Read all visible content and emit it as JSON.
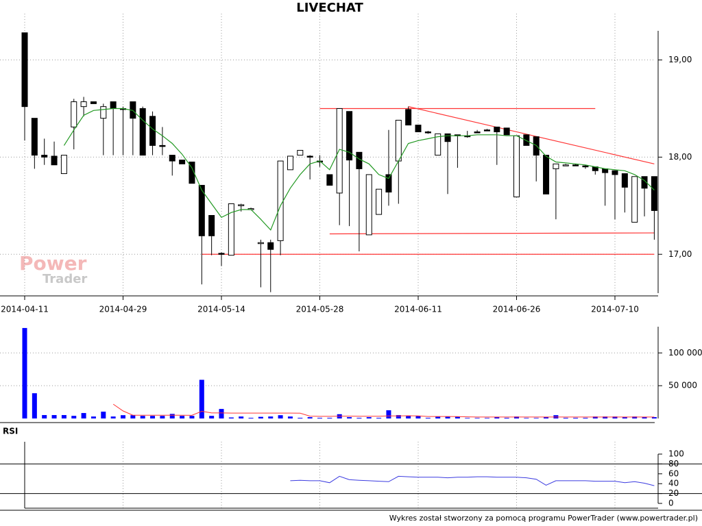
{
  "chart_data": [
    {
      "type": "candlestick",
      "title": "LIVECHAT",
      "x": [
        "2014-04-11",
        "2014-04-14",
        "2014-04-15",
        "2014-04-16",
        "2014-04-17",
        "2014-04-22",
        "2014-04-23",
        "2014-04-24",
        "2014-04-25",
        "2014-04-28",
        "2014-04-29",
        "2014-04-30",
        "2014-05-02",
        "2014-05-05",
        "2014-05-06",
        "2014-05-07",
        "2014-05-08",
        "2014-05-09",
        "2014-05-12",
        "2014-05-13",
        "2014-05-14",
        "2014-05-15",
        "2014-05-16",
        "2014-05-19",
        "2014-05-20",
        "2014-05-21",
        "2014-05-22",
        "2014-05-23",
        "2014-05-26",
        "2014-05-27",
        "2014-05-28",
        "2014-05-29",
        "2014-05-30",
        "2014-06-02",
        "2014-06-03",
        "2014-06-04",
        "2014-06-05",
        "2014-06-06",
        "2014-06-09",
        "2014-06-10",
        "2014-06-11",
        "2014-06-12",
        "2014-06-13",
        "2014-06-16",
        "2014-06-17",
        "2014-06-18",
        "2014-06-20",
        "2014-06-23",
        "2014-06-24",
        "2014-06-25",
        "2014-06-26",
        "2014-06-27",
        "2014-06-30",
        "2014-07-01",
        "2014-07-02",
        "2014-07-03",
        "2014-07-04",
        "2014-07-07",
        "2014-07-08",
        "2014-07-09",
        "2014-07-10",
        "2014-07-11",
        "2014-07-14",
        "2014-07-15",
        "2014-07-16"
      ],
      "open": [
        19.28,
        18.4,
        18.02,
        18.01,
        17.83,
        18.31,
        18.52,
        18.57,
        18.4,
        18.57,
        18.5,
        18.57,
        18.5,
        18.42,
        18.12,
        18.02,
        17.97,
        17.95,
        17.71,
        17.4,
        17.01,
        16.99,
        17.5,
        17.47,
        17.12,
        17.12,
        17.14,
        17.87,
        18.02,
        18.01,
        17.96,
        17.82,
        17.63,
        18.47,
        18.05,
        17.2,
        17.41,
        17.82,
        17.96,
        18.49,
        18.33,
        18.26,
        18.02,
        18.24,
        18.23,
        18.22,
        18.26,
        18.28,
        18.31,
        18.3,
        17.59,
        18.23,
        18.21,
        18.02,
        17.88,
        17.92,
        17.92,
        17.91,
        17.9,
        17.88,
        17.86,
        17.83,
        17.33,
        17.8,
        17.8
      ],
      "high": [
        19.28,
        18.4,
        18.19,
        18.16,
        18.02,
        18.6,
        18.62,
        18.57,
        18.55,
        18.57,
        18.52,
        18.57,
        18.52,
        18.47,
        18.31,
        18.02,
        17.97,
        17.95,
        17.71,
        17.4,
        17.02,
        17.52,
        17.52,
        17.48,
        17.15,
        17.15,
        17.96,
        18.01,
        18.07,
        18.02,
        18.02,
        17.82,
        18.5,
        18.47,
        18.05,
        17.82,
        17.67,
        18.28,
        18.38,
        18.52,
        18.33,
        18.27,
        18.24,
        18.24,
        18.23,
        18.27,
        18.28,
        18.29,
        18.31,
        18.3,
        18.22,
        18.23,
        18.21,
        18.02,
        17.93,
        17.93,
        17.93,
        17.92,
        17.9,
        17.88,
        17.86,
        17.83,
        17.8,
        17.8,
        17.8
      ],
      "low": [
        18.17,
        17.88,
        17.92,
        17.92,
        17.83,
        18.08,
        18.42,
        18.55,
        18.02,
        18.02,
        18.02,
        18.02,
        18.02,
        18.02,
        18.02,
        17.81,
        17.93,
        17.73,
        16.69,
        16.99,
        16.88,
        16.99,
        17.44,
        17.46,
        16.66,
        16.61,
        16.99,
        17.87,
        18.02,
        17.77,
        17.9,
        17.71,
        17.3,
        17.29,
        17.03,
        17.2,
        17.41,
        17.5,
        17.52,
        18.33,
        18.26,
        18.24,
        18.02,
        17.62,
        17.89,
        18.2,
        18.25,
        18.27,
        17.92,
        18.23,
        17.59,
        18.12,
        17.75,
        17.62,
        17.36,
        17.91,
        17.91,
        17.88,
        17.82,
        17.5,
        17.36,
        17.43,
        17.33,
        17.39,
        17.15
      ],
      "close": [
        18.52,
        18.02,
        18.0,
        17.92,
        18.02,
        18.57,
        18.57,
        18.55,
        18.52,
        18.5,
        18.49,
        18.4,
        18.02,
        18.12,
        18.11,
        17.96,
        17.93,
        17.73,
        17.19,
        17.19,
        17.0,
        17.52,
        17.51,
        17.47,
        17.12,
        17.05,
        17.96,
        18.01,
        18.07,
        18.0,
        17.95,
        17.71,
        18.5,
        17.97,
        17.88,
        17.82,
        17.67,
        17.64,
        18.38,
        18.33,
        18.26,
        18.25,
        18.24,
        18.16,
        18.22,
        18.21,
        18.25,
        18.27,
        18.26,
        18.23,
        18.22,
        18.12,
        18.02,
        17.62,
        17.93,
        17.92,
        17.91,
        17.9,
        17.86,
        17.84,
        17.82,
        17.69,
        17.8,
        17.68,
        17.45
      ],
      "up_color": "#ffffff",
      "down_color": "#000000",
      "ma": {
        "color": "#229922",
        "values": [
          null,
          null,
          null,
          null,
          18.12,
          18.28,
          18.43,
          18.48,
          18.49,
          18.5,
          18.5,
          18.48,
          18.38,
          18.29,
          18.22,
          18.14,
          18.03,
          17.89,
          17.66,
          17.52,
          17.38,
          17.43,
          17.46,
          17.46,
          17.36,
          17.25,
          17.5,
          17.68,
          17.82,
          17.93,
          17.96,
          17.87,
          18.08,
          18.05,
          17.98,
          17.93,
          17.82,
          17.78,
          17.96,
          18.14,
          18.17,
          18.19,
          18.21,
          18.22,
          18.22,
          18.22,
          18.23,
          18.23,
          18.23,
          18.22,
          18.22,
          18.17,
          18.12,
          18.01,
          17.95,
          17.94,
          17.93,
          17.92,
          17.9,
          17.88,
          17.87,
          17.86,
          17.82,
          17.76,
          17.66
        ]
      },
      "trendlines": [
        {
          "x": [
            "2014-05-28",
            "2014-07-08"
          ],
          "y": [
            18.5,
            18.5
          ]
        },
        {
          "x": [
            "2014-06-10",
            "2014-07-16"
          ],
          "y": [
            18.52,
            17.93
          ]
        },
        {
          "x": [
            "2014-05-29",
            "2014-07-16"
          ],
          "y": [
            17.21,
            17.22
          ]
        },
        {
          "x": [
            "2014-05-12",
            "2014-07-16"
          ],
          "y": [
            17.0,
            17.0
          ]
        }
      ],
      "trendline_color": "#ff3333",
      "ylim": [
        16.6,
        19.3
      ],
      "yticks": [
        {
          "value": 17,
          "label": "17,00"
        },
        {
          "value": 18,
          "label": "18,00"
        },
        {
          "value": 19,
          "label": "19,00"
        }
      ],
      "xticks": [
        "2014-04-11",
        "2014-04-29",
        "2014-05-14",
        "2014-05-28",
        "2014-06-11",
        "2014-06-26",
        "2014-07-10"
      ],
      "grid": true
    },
    {
      "type": "bar",
      "values": [
        138000,
        38500,
        5200,
        5200,
        5200,
        4000,
        8300,
        3000,
        10400,
        3000,
        5000,
        5000,
        4000,
        4000,
        4000,
        7000,
        4000,
        4000,
        59000,
        4000,
        14500,
        1500,
        3000,
        1000,
        2500,
        3000,
        5000,
        3000,
        1000,
        2000,
        1000,
        1000,
        6500,
        2000,
        1000,
        2000,
        1000,
        12500,
        5200,
        4200,
        4200,
        1000,
        3000,
        3000,
        3000,
        800,
        800,
        800,
        2000,
        1000,
        3000,
        800,
        800,
        2000,
        5000,
        1000,
        1000,
        1000,
        3000,
        3000,
        3000,
        2000,
        3000,
        2000,
        2000
      ],
      "color": "#0000ff",
      "ma": {
        "color": "#ff3333",
        "values": [
          null,
          null,
          null,
          null,
          null,
          null,
          null,
          null,
          null,
          21800,
          11500,
          5000,
          5000,
          5000,
          5000,
          5000,
          5000,
          4800,
          11000,
          8500,
          8500,
          8300,
          8300,
          8300,
          8300,
          8300,
          8300,
          8300,
          8000,
          3500,
          3200,
          3200,
          3500,
          3500,
          3300,
          3300,
          3300,
          4000,
          4000,
          4200,
          4000,
          3000,
          3000,
          3000,
          2800,
          2500,
          2200,
          2200,
          2200,
          2200,
          2200,
          2200,
          2200,
          2200,
          2200,
          2200,
          2200,
          2200,
          2200,
          2200,
          2200,
          2200,
          2200,
          2200,
          2200
        ]
      },
      "ylim": [
        0,
        140000
      ],
      "yticks": [
        {
          "value": 50000,
          "label": "50 000"
        },
        {
          "value": 100000,
          "label": "100 000"
        }
      ],
      "grid": true
    },
    {
      "type": "line",
      "title": "RSI",
      "values": [
        null,
        null,
        null,
        null,
        null,
        null,
        null,
        null,
        null,
        null,
        null,
        null,
        null,
        null,
        null,
        null,
        null,
        null,
        null,
        null,
        null,
        null,
        null,
        null,
        null,
        null,
        null,
        46,
        47,
        46,
        46,
        42,
        55,
        48,
        47,
        46,
        45,
        44,
        55,
        54,
        53,
        53,
        53,
        52,
        53,
        53,
        54,
        54,
        53,
        53,
        53,
        52,
        49,
        37,
        46,
        46,
        46,
        46,
        45,
        45,
        45,
        42,
        44,
        41,
        36
      ],
      "color": "#3a3ae0",
      "ylim": [
        0,
        100
      ],
      "yticks": [
        0,
        20,
        40,
        60,
        80,
        100
      ],
      "levels": [
        80,
        20
      ]
    }
  ],
  "watermark": [
    "Power",
    "Trader"
  ],
  "footer": "Wykres został stworzony za pomocą programu PowerTrader (www.powertrader.pl)"
}
